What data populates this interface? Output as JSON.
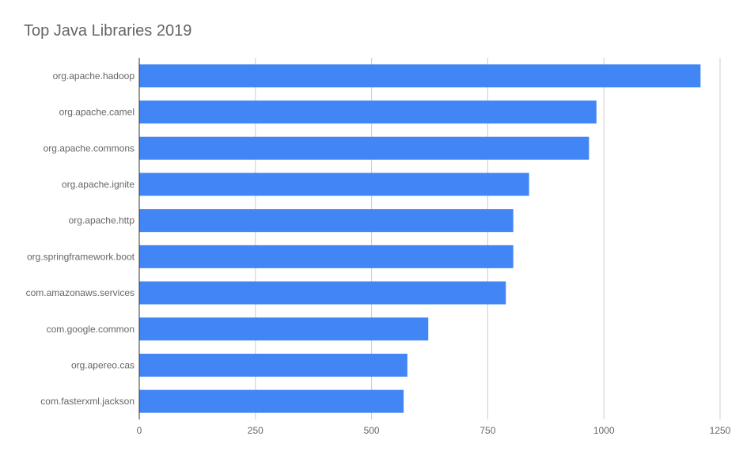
{
  "colors": {
    "bar": "#4285f4",
    "grid": "#cccccc",
    "axis": "#333333",
    "text": "#666666"
  },
  "chart_data": {
    "type": "bar",
    "orientation": "horizontal",
    "title": "Top Java Libraries 2019",
    "xlabel": "",
    "ylabel": "",
    "categories": [
      "org.apache.hadoop",
      "org.apache.camel",
      "org.apache.commons",
      "org.apache.ignite",
      "org.apache.http",
      "org.springframework.boot",
      "com.amazonaws.services",
      "com.google.common",
      "org.apereo.cas",
      "com.fasterxml.jackson"
    ],
    "values": [
      1208,
      984,
      968,
      839,
      805,
      805,
      789,
      622,
      577,
      569
    ],
    "xlim": [
      0,
      1250
    ],
    "xticks": [
      "0",
      "250",
      "500",
      "750",
      "1000",
      "1250"
    ],
    "grid": true,
    "legend": "none"
  }
}
